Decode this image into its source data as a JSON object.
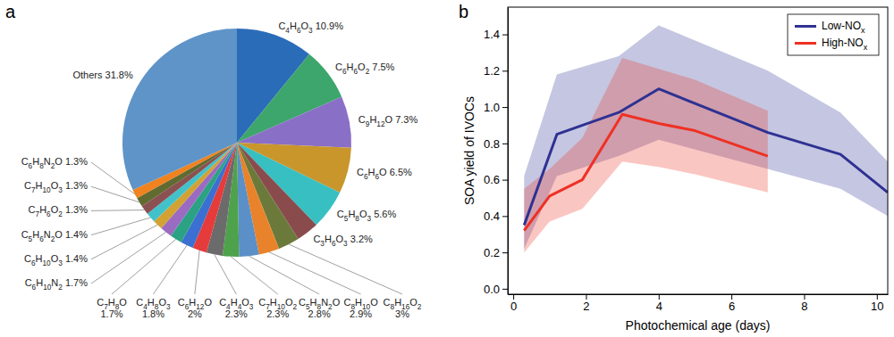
{
  "chart_data": [
    {
      "type": "pie",
      "title": "a",
      "categories": [
        "C4H6O3",
        "C6H6O2",
        "C9H12O",
        "C6H6O",
        "C5H8O3",
        "C3H6O3",
        "C8H16O2",
        "C8H10O",
        "C5H8N2O",
        "C7H10O2",
        "C4H4O3",
        "C6H12O",
        "C4H8O3",
        "C7H8O",
        "C6H10N2",
        "C6H10O3",
        "C5H6N2O",
        "C7H6O2",
        "C7H10O3",
        "C6H8N2O",
        "Others"
      ],
      "values": [
        10.9,
        7.5,
        7.3,
        6.5,
        5.6,
        3.2,
        3,
        2.9,
        2.8,
        2.3,
        2.3,
        2,
        1.8,
        1.7,
        1.7,
        1.4,
        1.4,
        1.3,
        1.3,
        1.3,
        31.8
      ],
      "value_labels": [
        "10.9%",
        "7.5%",
        "7.3%",
        "6.5%",
        "5.6%",
        "3.2%",
        "3%",
        "2.9%",
        "2.8%",
        "2.3%",
        "2.3%",
        "2%",
        "1.8%",
        "1.7%",
        "1.7%",
        "1.4%",
        "1.4%",
        "1.3%",
        "1.3%",
        "1.3%",
        "31.8%"
      ],
      "colors": [
        "#2b6cb8",
        "#3ca66c",
        "#8a6fc6",
        "#c9962c",
        "#38bfc1",
        "#8a4b4d",
        "#6b7a3a",
        "#e9832b",
        "#5b8fc7",
        "#4ea24c",
        "#6b6b6b",
        "#e63b3b",
        "#3b6fd1",
        "#2ba283",
        "#9b6bc2",
        "#d2a233",
        "#41c2ca",
        "#8b5052",
        "#616b31",
        "#f0821f",
        "#5f94c8"
      ]
    },
    {
      "type": "line",
      "title": "b",
      "xlabel": "Photochemical age (days)",
      "ylabel": "SOA yield of IVOCs",
      "xlim": [
        -0.15,
        10.3
      ],
      "ylim": [
        -0.03,
        1.55
      ],
      "xticks": [
        0,
        2,
        4,
        6,
        8,
        10
      ],
      "yticks": [
        {
          "value": 0,
          "label": "0.0"
        },
        0.2,
        0.4,
        0.6,
        0.8,
        {
          "value": 1,
          "label": "1.0"
        },
        1.2,
        1.4
      ],
      "legend": "top-right",
      "series": [
        {
          "name": "Low-NOx",
          "color": "#2e3192",
          "x": [
            0.3,
            1.2,
            2.9,
            4,
            7,
            9,
            10.3
          ],
          "values": [
            0.35,
            0.85,
            0.97,
            1.1,
            0.86,
            0.74,
            0.53
          ],
          "lower": [
            0.22,
            0.62,
            0.73,
            0.82,
            0.66,
            0.55,
            0.4
          ],
          "upper": [
            0.62,
            1.18,
            1.28,
            1.45,
            1.2,
            0.97,
            0.7
          ]
        },
        {
          "name": "High-NOx",
          "color": "#ee3124",
          "x": [
            0.3,
            1,
            1.9,
            3,
            4,
            5,
            7
          ],
          "values": [
            0.32,
            0.51,
            0.6,
            0.96,
            0.91,
            0.87,
            0.73
          ],
          "lower": [
            0.2,
            0.37,
            0.44,
            0.7,
            0.67,
            0.63,
            0.53
          ],
          "upper": [
            0.55,
            0.66,
            0.83,
            1.27,
            1.21,
            1.15,
            0.98
          ]
        }
      ]
    }
  ]
}
